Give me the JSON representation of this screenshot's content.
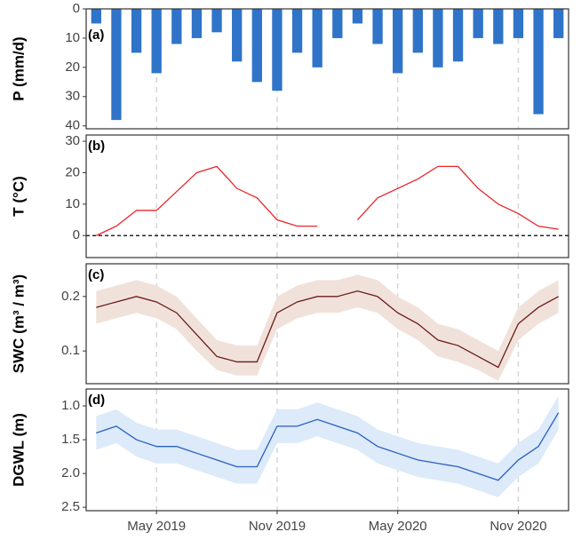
{
  "chart_data": [
    {
      "type": "bar",
      "tag": "(a)",
      "y_label": "P (mm/d)",
      "y_reversed": true,
      "color": "#2f74c8",
      "x": [
        "2019-02",
        "2019-03",
        "2019-04",
        "2019-05",
        "2019-06",
        "2019-07",
        "2019-08",
        "2019-09",
        "2019-10",
        "2019-11",
        "2019-12",
        "2020-01",
        "2020-02",
        "2020-03",
        "2020-04",
        "2020-05",
        "2020-06",
        "2020-07",
        "2020-08",
        "2020-09",
        "2020-10",
        "2020-11",
        "2020-12",
        "2021-01"
      ],
      "values": [
        5,
        38,
        15,
        22,
        12,
        10,
        8,
        18,
        25,
        28,
        15,
        20,
        10,
        5,
        12,
        22,
        15,
        20,
        18,
        10,
        12,
        10,
        36,
        10
      ],
      "xlim": [
        "2019-02",
        "2021-01"
      ],
      "ylim": [
        0,
        41
      ],
      "yticks": [
        0,
        10,
        20,
        30,
        40
      ]
    },
    {
      "type": "line",
      "tag": "(b)",
      "y_label": "T (°C)",
      "y_reversed": false,
      "color": "#e8262b",
      "hline": 0,
      "x": [
        "2019-02",
        "2019-03",
        "2019-04",
        "2019-05",
        "2019-06",
        "2019-07",
        "2019-08",
        "2019-09",
        "2019-10",
        "2019-11",
        "2019-12",
        "2020-01",
        "2020-02",
        "2020-03",
        "2020-04",
        "2020-05",
        "2020-06",
        "2020-07",
        "2020-08",
        "2020-09",
        "2020-10",
        "2020-11",
        "2020-12",
        "2021-01"
      ],
      "values": [
        0,
        3,
        8,
        8,
        14,
        20,
        22,
        15,
        12,
        5,
        3,
        3,
        null,
        5,
        12,
        15,
        18,
        22,
        22,
        15,
        10,
        7,
        3,
        2
      ],
      "xlim": [
        "2019-02",
        "2021-01"
      ],
      "ylim": [
        -7,
        32
      ],
      "yticks": [
        0,
        10,
        20,
        30
      ]
    },
    {
      "type": "line",
      "tag": "(c)",
      "y_label": "SWC (m³ / m³)",
      "y_reversed": false,
      "color": "#6b1a1a",
      "band_color": "#f0e2da",
      "x": [
        "2019-02",
        "2019-03",
        "2019-04",
        "2019-05",
        "2019-06",
        "2019-07",
        "2019-08",
        "2019-09",
        "2019-10",
        "2019-11",
        "2019-12",
        "2020-01",
        "2020-02",
        "2020-03",
        "2020-04",
        "2020-05",
        "2020-06",
        "2020-07",
        "2020-08",
        "2020-09",
        "2020-10",
        "2020-11",
        "2020-12",
        "2021-01"
      ],
      "values": [
        0.18,
        0.19,
        0.2,
        0.19,
        0.17,
        0.13,
        0.09,
        0.08,
        0.08,
        0.17,
        0.19,
        0.2,
        0.2,
        0.21,
        0.2,
        0.17,
        0.15,
        0.12,
        0.11,
        0.09,
        0.07,
        0.15,
        0.18,
        0.2
      ],
      "lower": [
        0.15,
        0.16,
        0.17,
        0.16,
        0.14,
        0.1,
        0.065,
        0.055,
        0.055,
        0.14,
        0.16,
        0.17,
        0.17,
        0.18,
        0.17,
        0.14,
        0.12,
        0.09,
        0.08,
        0.065,
        0.045,
        0.12,
        0.15,
        0.17
      ],
      "upper": [
        0.21,
        0.22,
        0.23,
        0.22,
        0.2,
        0.16,
        0.12,
        0.11,
        0.11,
        0.2,
        0.22,
        0.23,
        0.23,
        0.24,
        0.23,
        0.2,
        0.18,
        0.15,
        0.14,
        0.12,
        0.1,
        0.18,
        0.21,
        0.23
      ],
      "xlim": [
        "2019-02",
        "2021-01"
      ],
      "ylim": [
        0.04,
        0.26
      ],
      "yticks": [
        0.1,
        0.2
      ]
    },
    {
      "type": "line",
      "tag": "(d)",
      "y_label": "DGWL (m)",
      "y_reversed": true,
      "color": "#2a5fc0",
      "band_color": "#dceaf9",
      "x": [
        "2019-02",
        "2019-03",
        "2019-04",
        "2019-05",
        "2019-06",
        "2019-07",
        "2019-08",
        "2019-09",
        "2019-10",
        "2019-11",
        "2019-12",
        "2020-01",
        "2020-02",
        "2020-03",
        "2020-04",
        "2020-05",
        "2020-06",
        "2020-07",
        "2020-08",
        "2020-09",
        "2020-10",
        "2020-11",
        "2020-12",
        "2021-01"
      ],
      "values": [
        1.4,
        1.3,
        1.5,
        1.6,
        1.6,
        1.7,
        1.8,
        1.9,
        1.9,
        1.3,
        1.3,
        1.2,
        1.3,
        1.4,
        1.6,
        1.7,
        1.8,
        1.85,
        1.9,
        2.0,
        2.1,
        1.8,
        1.6,
        1.1
      ],
      "lower": [
        1.15,
        1.05,
        1.25,
        1.35,
        1.35,
        1.45,
        1.55,
        1.65,
        1.65,
        1.05,
        1.05,
        0.95,
        1.05,
        1.15,
        1.35,
        1.45,
        1.55,
        1.6,
        1.65,
        1.75,
        1.85,
        1.55,
        1.35,
        0.85
      ],
      "upper": [
        1.65,
        1.55,
        1.75,
        1.85,
        1.85,
        1.95,
        2.05,
        2.15,
        2.15,
        1.55,
        1.55,
        1.45,
        1.55,
        1.65,
        1.85,
        1.95,
        2.05,
        2.1,
        2.15,
        2.25,
        2.35,
        2.05,
        1.85,
        1.35
      ],
      "xlim": [
        "2019-02",
        "2021-01"
      ],
      "ylim": [
        0.75,
        2.55
      ],
      "yticks": [
        {
          "value": 1.0,
          "label": "1.0"
        },
        1.5,
        {
          "value": 2.0,
          "label": "2.0"
        },
        2.5
      ],
      "xticks": [
        {
          "value": "2019-05",
          "label": "May 2019"
        },
        {
          "value": "2019-11",
          "label": "Nov 2019"
        },
        {
          "value": "2020-05",
          "label": "May 2020"
        },
        {
          "value": "2020-11",
          "label": "Nov 2020"
        }
      ]
    }
  ]
}
